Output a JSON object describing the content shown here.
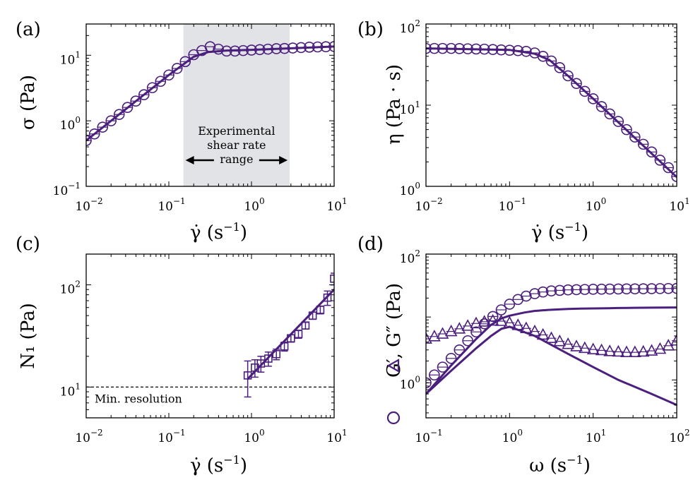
{
  "colors": {
    "accent": "#4b1f7d",
    "shade": "#e1e3e6",
    "axis": "#000000"
  },
  "chart_data": [
    {
      "type": "scatter",
      "panel_label": "(a)",
      "xlabel": "γ̇ (s⁻¹)",
      "ylabel": "σ (Pa)",
      "xscale": "log",
      "yscale": "log",
      "xlim": [
        0.01,
        10
      ],
      "ylim": [
        0.1,
        30
      ],
      "xticks": [
        {
          "base": "10",
          "exp": "−2"
        },
        {
          "base": "10",
          "exp": "−1"
        },
        {
          "base": "10",
          "exp": "0"
        },
        {
          "base": "10",
          "exp": "1"
        }
      ],
      "yticks": [
        {
          "base": "10",
          "exp": "−1"
        },
        {
          "base": "10",
          "exp": "0"
        },
        {
          "base": "10",
          "exp": "1"
        }
      ],
      "shaded_region": {
        "x": [
          0.15,
          2.9
        ],
        "label_lines": [
          "Experimental",
          "shear rate",
          "range"
        ]
      },
      "series": [
        {
          "marker": "circle",
          "x": [
            0.01,
            0.0126,
            0.0158,
            0.02,
            0.0251,
            0.0316,
            0.0398,
            0.05,
            0.0631,
            0.0794,
            0.1,
            0.126,
            0.158,
            0.2,
            0.251,
            0.316,
            0.398,
            0.5,
            0.631,
            0.794,
            1.0,
            1.26,
            1.58,
            2.0,
            2.51,
            3.16,
            3.98,
            5.01,
            6.31,
            7.94,
            10.0
          ],
          "y": [
            0.5,
            0.63,
            0.8,
            1.0,
            1.25,
            1.6,
            2.0,
            2.5,
            3.2,
            4.0,
            5.0,
            6.3,
            8.0,
            10.2,
            11.8,
            13.5,
            12.4,
            11.6,
            11.6,
            11.8,
            12.0,
            12.2,
            12.4,
            12.6,
            12.7,
            12.9,
            13.1,
            13.3,
            13.4,
            13.5,
            13.6
          ]
        },
        {
          "marker": "line",
          "x": [
            0.01,
            0.02,
            0.05,
            0.1,
            0.2,
            0.3,
            0.5,
            1,
            2,
            5,
            10
          ],
          "y": [
            0.5,
            1.0,
            2.5,
            5.0,
            9.5,
            11.2,
            11.8,
            12.1,
            12.5,
            13.1,
            13.6
          ]
        }
      ]
    },
    {
      "type": "scatter",
      "panel_label": "(b)",
      "xlabel": "γ̇ (s⁻¹)",
      "ylabel": "η (Pa · s)",
      "xscale": "log",
      "yscale": "log",
      "xlim": [
        0.01,
        10
      ],
      "ylim": [
        1,
        100
      ],
      "xticks": [
        {
          "base": "10",
          "exp": "−2"
        },
        {
          "base": "10",
          "exp": "−1"
        },
        {
          "base": "10",
          "exp": "0"
        },
        {
          "base": "10",
          "exp": "1"
        }
      ],
      "yticks": [
        {
          "base": "10",
          "exp": "0"
        },
        {
          "base": "10",
          "exp": "1"
        },
        {
          "base": "10",
          "exp": "2"
        }
      ],
      "series": [
        {
          "marker": "circle",
          "x": [
            0.01,
            0.0126,
            0.0158,
            0.02,
            0.0251,
            0.0316,
            0.0398,
            0.05,
            0.0631,
            0.0794,
            0.1,
            0.126,
            0.158,
            0.2,
            0.251,
            0.316,
            0.398,
            0.5,
            0.631,
            0.794,
            1.0,
            1.26,
            1.58,
            2.0,
            2.51,
            3.16,
            3.98,
            5.01,
            6.31,
            7.94,
            10.0
          ],
          "y": [
            50,
            50,
            50,
            50,
            49.8,
            49.5,
            49.2,
            49,
            48.5,
            48,
            47.5,
            47,
            46,
            44,
            40,
            35,
            29,
            23,
            18.5,
            14.8,
            12.0,
            9.6,
            7.8,
            6.3,
            5.0,
            4.05,
            3.3,
            2.65,
            2.1,
            1.7,
            1.32
          ]
        },
        {
          "marker": "line",
          "x": [
            0.01,
            0.1,
            0.2,
            0.3,
            0.5,
            1,
            10
          ],
          "y": [
            50,
            48,
            43,
            36,
            23,
            12,
            1.3
          ]
        }
      ]
    },
    {
      "type": "scatter",
      "panel_label": "(c)",
      "xlabel": "γ̇ (s⁻¹)",
      "ylabel": "N₁ (Pa)",
      "xscale": "log",
      "yscale": "log",
      "xlim": [
        0.01,
        10
      ],
      "ylim": [
        5,
        200
      ],
      "xticks": [
        {
          "base": "10",
          "exp": "−2"
        },
        {
          "base": "10",
          "exp": "−1"
        },
        {
          "base": "10",
          "exp": "0"
        },
        {
          "base": "10",
          "exp": "1"
        }
      ],
      "yticks": [
        {
          "base": "10",
          "exp": "1"
        },
        {
          "base": "10",
          "exp": "2"
        }
      ],
      "reference_line": {
        "y": 10,
        "label": "Min. resolution"
      },
      "series": [
        {
          "marker": "square",
          "x": [
            0.9,
            1.1,
            1.3,
            1.6,
            2.0,
            2.5,
            3.0,
            3.7,
            4.5,
            5.5,
            6.8,
            8.3,
            10.0
          ],
          "y": [
            13,
            15.5,
            17,
            19,
            21,
            25,
            30,
            33,
            40,
            50,
            57,
            75,
            115
          ],
          "err": [
            5,
            3,
            3,
            3,
            2.5,
            2.5,
            2.5,
            3,
            3,
            4,
            5,
            12,
            15
          ]
        },
        {
          "marker": "line",
          "x": [
            0.9,
            10
          ],
          "y": [
            12,
            90
          ]
        }
      ]
    },
    {
      "type": "scatter",
      "panel_label": "(d)",
      "xlabel": "ω (s⁻¹)",
      "ylabel": "G′, G″ (Pa)",
      "xscale": "log",
      "yscale": "log",
      "xlim": [
        0.1,
        100
      ],
      "ylim": [
        0.25,
        100
      ],
      "xticks": [
        {
          "base": "10",
          "exp": "−1"
        },
        {
          "base": "10",
          "exp": "0"
        },
        {
          "base": "10",
          "exp": "1"
        },
        {
          "base": "10",
          "exp": "2"
        }
      ],
      "yticks": [
        {
          "base": "10",
          "exp": "0"
        },
        {
          "base": "10",
          "exp": "2"
        }
      ],
      "series": [
        {
          "marker": "circle",
          "x": [
            0.1,
            0.126,
            0.158,
            0.2,
            0.251,
            0.316,
            0.398,
            0.5,
            0.631,
            0.794,
            1.0,
            1.26,
            1.58,
            2.0,
            2.51,
            3.16,
            3.98,
            5.01,
            6.31,
            7.94,
            10.0,
            12.6,
            15.8,
            20,
            25.1,
            31.6,
            39.8,
            50.1,
            63.1,
            79.4,
            100
          ],
          "y": [
            0.9,
            1.2,
            1.6,
            2.2,
            3.0,
            4.2,
            5.8,
            7.8,
            10.2,
            13,
            16,
            19,
            21.5,
            23.5,
            25,
            26,
            26.5,
            27,
            27.2,
            27.4,
            27.6,
            27.7,
            27.8,
            27.9,
            28,
            28,
            28.1,
            28.2,
            28.3,
            28.4,
            28.5
          ]
        },
        {
          "marker": "triangle",
          "x": [
            0.1,
            0.126,
            0.158,
            0.2,
            0.251,
            0.316,
            0.398,
            0.5,
            0.631,
            0.794,
            1.0,
            1.26,
            1.58,
            2.0,
            2.51,
            3.16,
            3.98,
            5.01,
            6.31,
            7.94,
            10.0,
            12.6,
            15.8,
            20,
            25.1,
            31.6,
            39.8,
            50.1,
            63.1,
            79.4,
            100
          ],
          "y": [
            4.5,
            4.9,
            5.4,
            5.9,
            6.5,
            7.2,
            7.9,
            8.4,
            8.7,
            8.6,
            8.1,
            7.4,
            6.6,
            5.9,
            5.2,
            4.6,
            4.1,
            3.7,
            3.4,
            3.2,
            3.05,
            2.95,
            2.85,
            2.8,
            2.75,
            2.75,
            2.8,
            2.9,
            3.1,
            3.5,
            4.2
          ]
        },
        {
          "marker": "line",
          "x": [
            0.1,
            0.2,
            0.4,
            0.6,
            0.8,
            1,
            1.5,
            2,
            3,
            5,
            7,
            10,
            15,
            20,
            30,
            50,
            100
          ],
          "y": [
            0.6,
            1.7,
            4.5,
            7.5,
            9.5,
            10.5,
            11.8,
            12.5,
            13,
            13.4,
            13.6,
            13.7,
            13.8,
            13.9,
            14,
            14.1,
            14.2
          ]
        },
        {
          "marker": "line",
          "x": [
            0.1,
            0.2,
            0.4,
            0.6,
            0.8,
            1,
            2,
            5,
            10,
            20,
            50,
            100
          ],
          "y": [
            0.6,
            1.4,
            3.2,
            5.0,
            6.5,
            7.0,
            5.0,
            2.6,
            1.6,
            1.0,
            0.6,
            0.4
          ]
        }
      ]
    }
  ]
}
